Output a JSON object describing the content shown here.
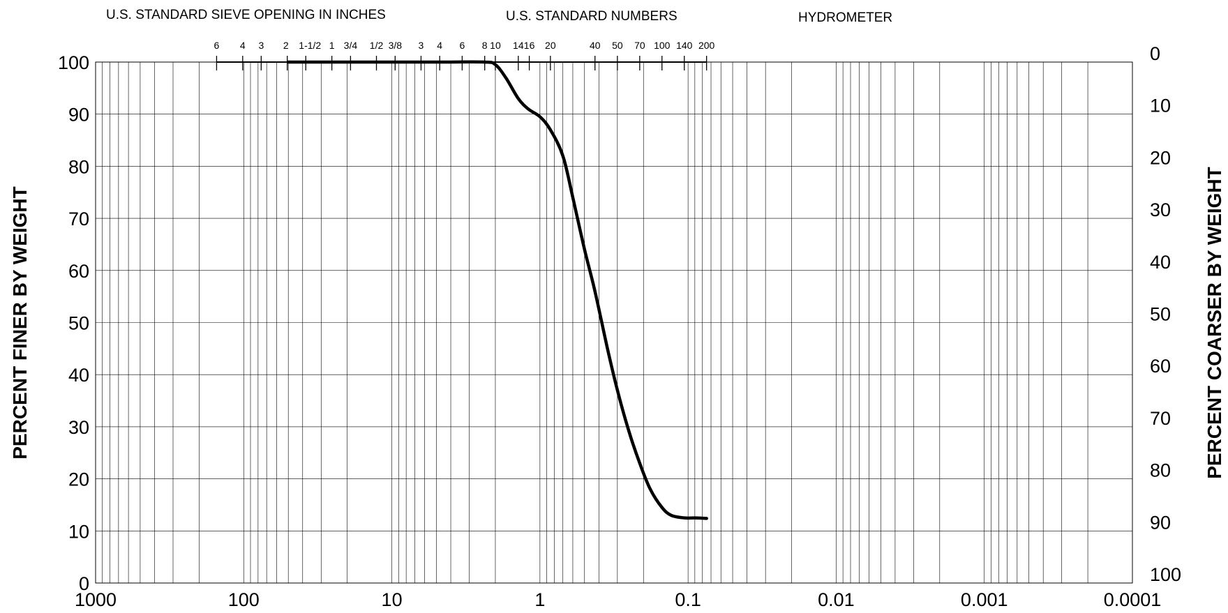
{
  "chart_data": {
    "type": "line",
    "x_scale": "log",
    "x_reversed": true,
    "x_units": "mm",
    "xlim": [
      1000,
      0.0001
    ],
    "ylim": [
      0,
      100
    ],
    "grid": true,
    "headers": {
      "sieve_inches": "U.S. STANDARD SIEVE OPENING IN INCHES",
      "standard_numbers": "U.S. STANDARD NUMBERS",
      "hydrometer": "HYDROMETER"
    },
    "ylabel_left": "PERCENT FINER BY WEIGHT",
    "ylabel_right": "PERCENT COARSER BY WEIGHT",
    "x_tick_labels": [
      {
        "value": 1000,
        "label": "1000"
      },
      {
        "value": 100,
        "label": "100"
      },
      {
        "value": 10,
        "label": "10"
      },
      {
        "value": 1,
        "label": "1"
      },
      {
        "value": 0.1,
        "label": "0.1"
      },
      {
        "value": 0.01,
        "label": "0.01"
      },
      {
        "value": 0.001,
        "label": "0.001"
      },
      {
        "value": 0.0001,
        "label": "0.0001"
      }
    ],
    "y_ticks_left": [
      "0",
      "10",
      "20",
      "30",
      "40",
      "50",
      "60",
      "70",
      "80",
      "90",
      "100"
    ],
    "y_ticks_right": [
      "100",
      "90",
      "80",
      "70",
      "60",
      "50",
      "40",
      "30",
      "20",
      "10",
      "0"
    ],
    "sieves": [
      {
        "label": "6",
        "size_mm": 152.4
      },
      {
        "label": "4",
        "size_mm": 101.6
      },
      {
        "label": "3",
        "size_mm": 76.2
      },
      {
        "label": "2",
        "size_mm": 50.8
      },
      {
        "label": "1-1/2",
        "size_mm": 38.1
      },
      {
        "label": "1",
        "size_mm": 25.4
      },
      {
        "label": "3/4",
        "size_mm": 19.0
      },
      {
        "label": "1/2",
        "size_mm": 12.7
      },
      {
        "label": "3/8",
        "size_mm": 9.5
      },
      {
        "label": "3",
        "size_mm": 6.35
      },
      {
        "label": "4",
        "size_mm": 4.75
      },
      {
        "label": "6",
        "size_mm": 3.35
      },
      {
        "label": "8",
        "size_mm": 2.36
      },
      {
        "label": "10",
        "size_mm": 2.0
      },
      {
        "label": "14",
        "size_mm": 1.4
      },
      {
        "label": "16",
        "size_mm": 1.18
      },
      {
        "label": "20",
        "size_mm": 0.85
      },
      {
        "label": "40",
        "size_mm": 0.425
      },
      {
        "label": "50",
        "size_mm": 0.3
      },
      {
        "label": "70",
        "size_mm": 0.212
      },
      {
        "label": "100",
        "size_mm": 0.15
      },
      {
        "label": "140",
        "size_mm": 0.106
      },
      {
        "label": "200",
        "size_mm": 0.075
      }
    ],
    "series": [
      {
        "color": "#000000",
        "points": [
          [
            50,
            100
          ],
          [
            12.7,
            100
          ],
          [
            4.75,
            100
          ],
          [
            2.36,
            100
          ],
          [
            2.0,
            99.5
          ],
          [
            1.7,
            97
          ],
          [
            1.4,
            93
          ],
          [
            1.2,
            91
          ],
          [
            1.0,
            89.5
          ],
          [
            0.85,
            87
          ],
          [
            0.7,
            82
          ],
          [
            0.6,
            74
          ],
          [
            0.5,
            64
          ],
          [
            0.425,
            56
          ],
          [
            0.35,
            45
          ],
          [
            0.3,
            37
          ],
          [
            0.25,
            29
          ],
          [
            0.212,
            23
          ],
          [
            0.18,
            18
          ],
          [
            0.15,
            14.5
          ],
          [
            0.13,
            13
          ],
          [
            0.106,
            12.5
          ],
          [
            0.09,
            12.5
          ],
          [
            0.075,
            12.4
          ]
        ]
      }
    ]
  }
}
